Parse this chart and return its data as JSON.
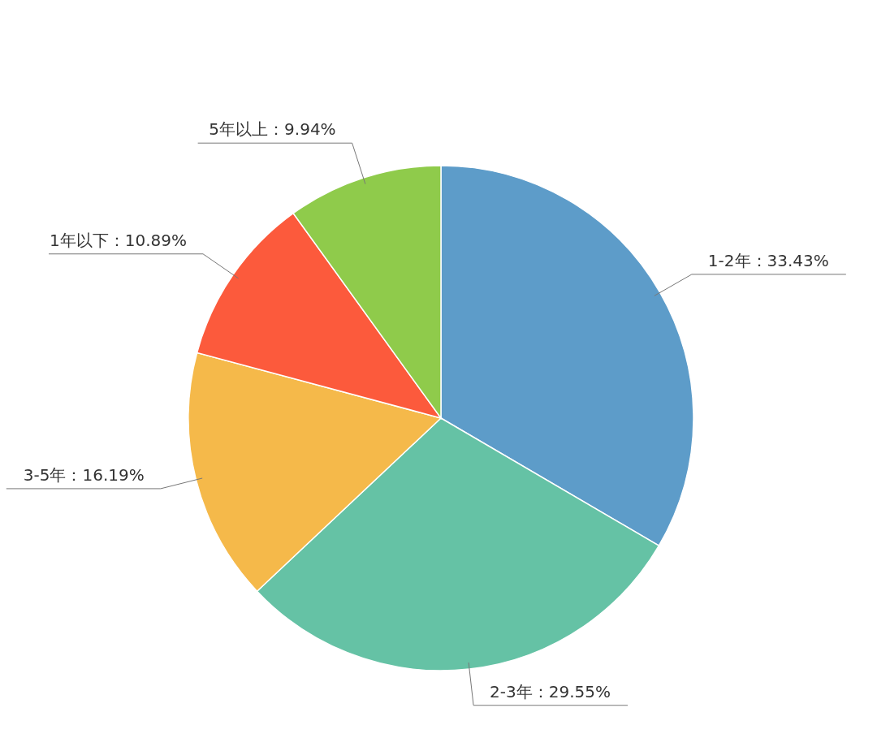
{
  "chart_data": {
    "type": "pie",
    "categories": [
      "1-2年",
      "2-3年",
      "3-5年",
      "1年以下",
      "5年以上"
    ],
    "values": [
      33.43,
      29.55,
      16.19,
      10.89,
      9.94
    ],
    "value_labels": [
      "33.43%",
      "29.55%",
      "16.19%",
      "10.89%",
      "9.94%"
    ],
    "colors": [
      "#5d9cc9",
      "#65c2a5",
      "#f5b94a",
      "#fc5a3c",
      "#8fcb4b"
    ]
  }
}
